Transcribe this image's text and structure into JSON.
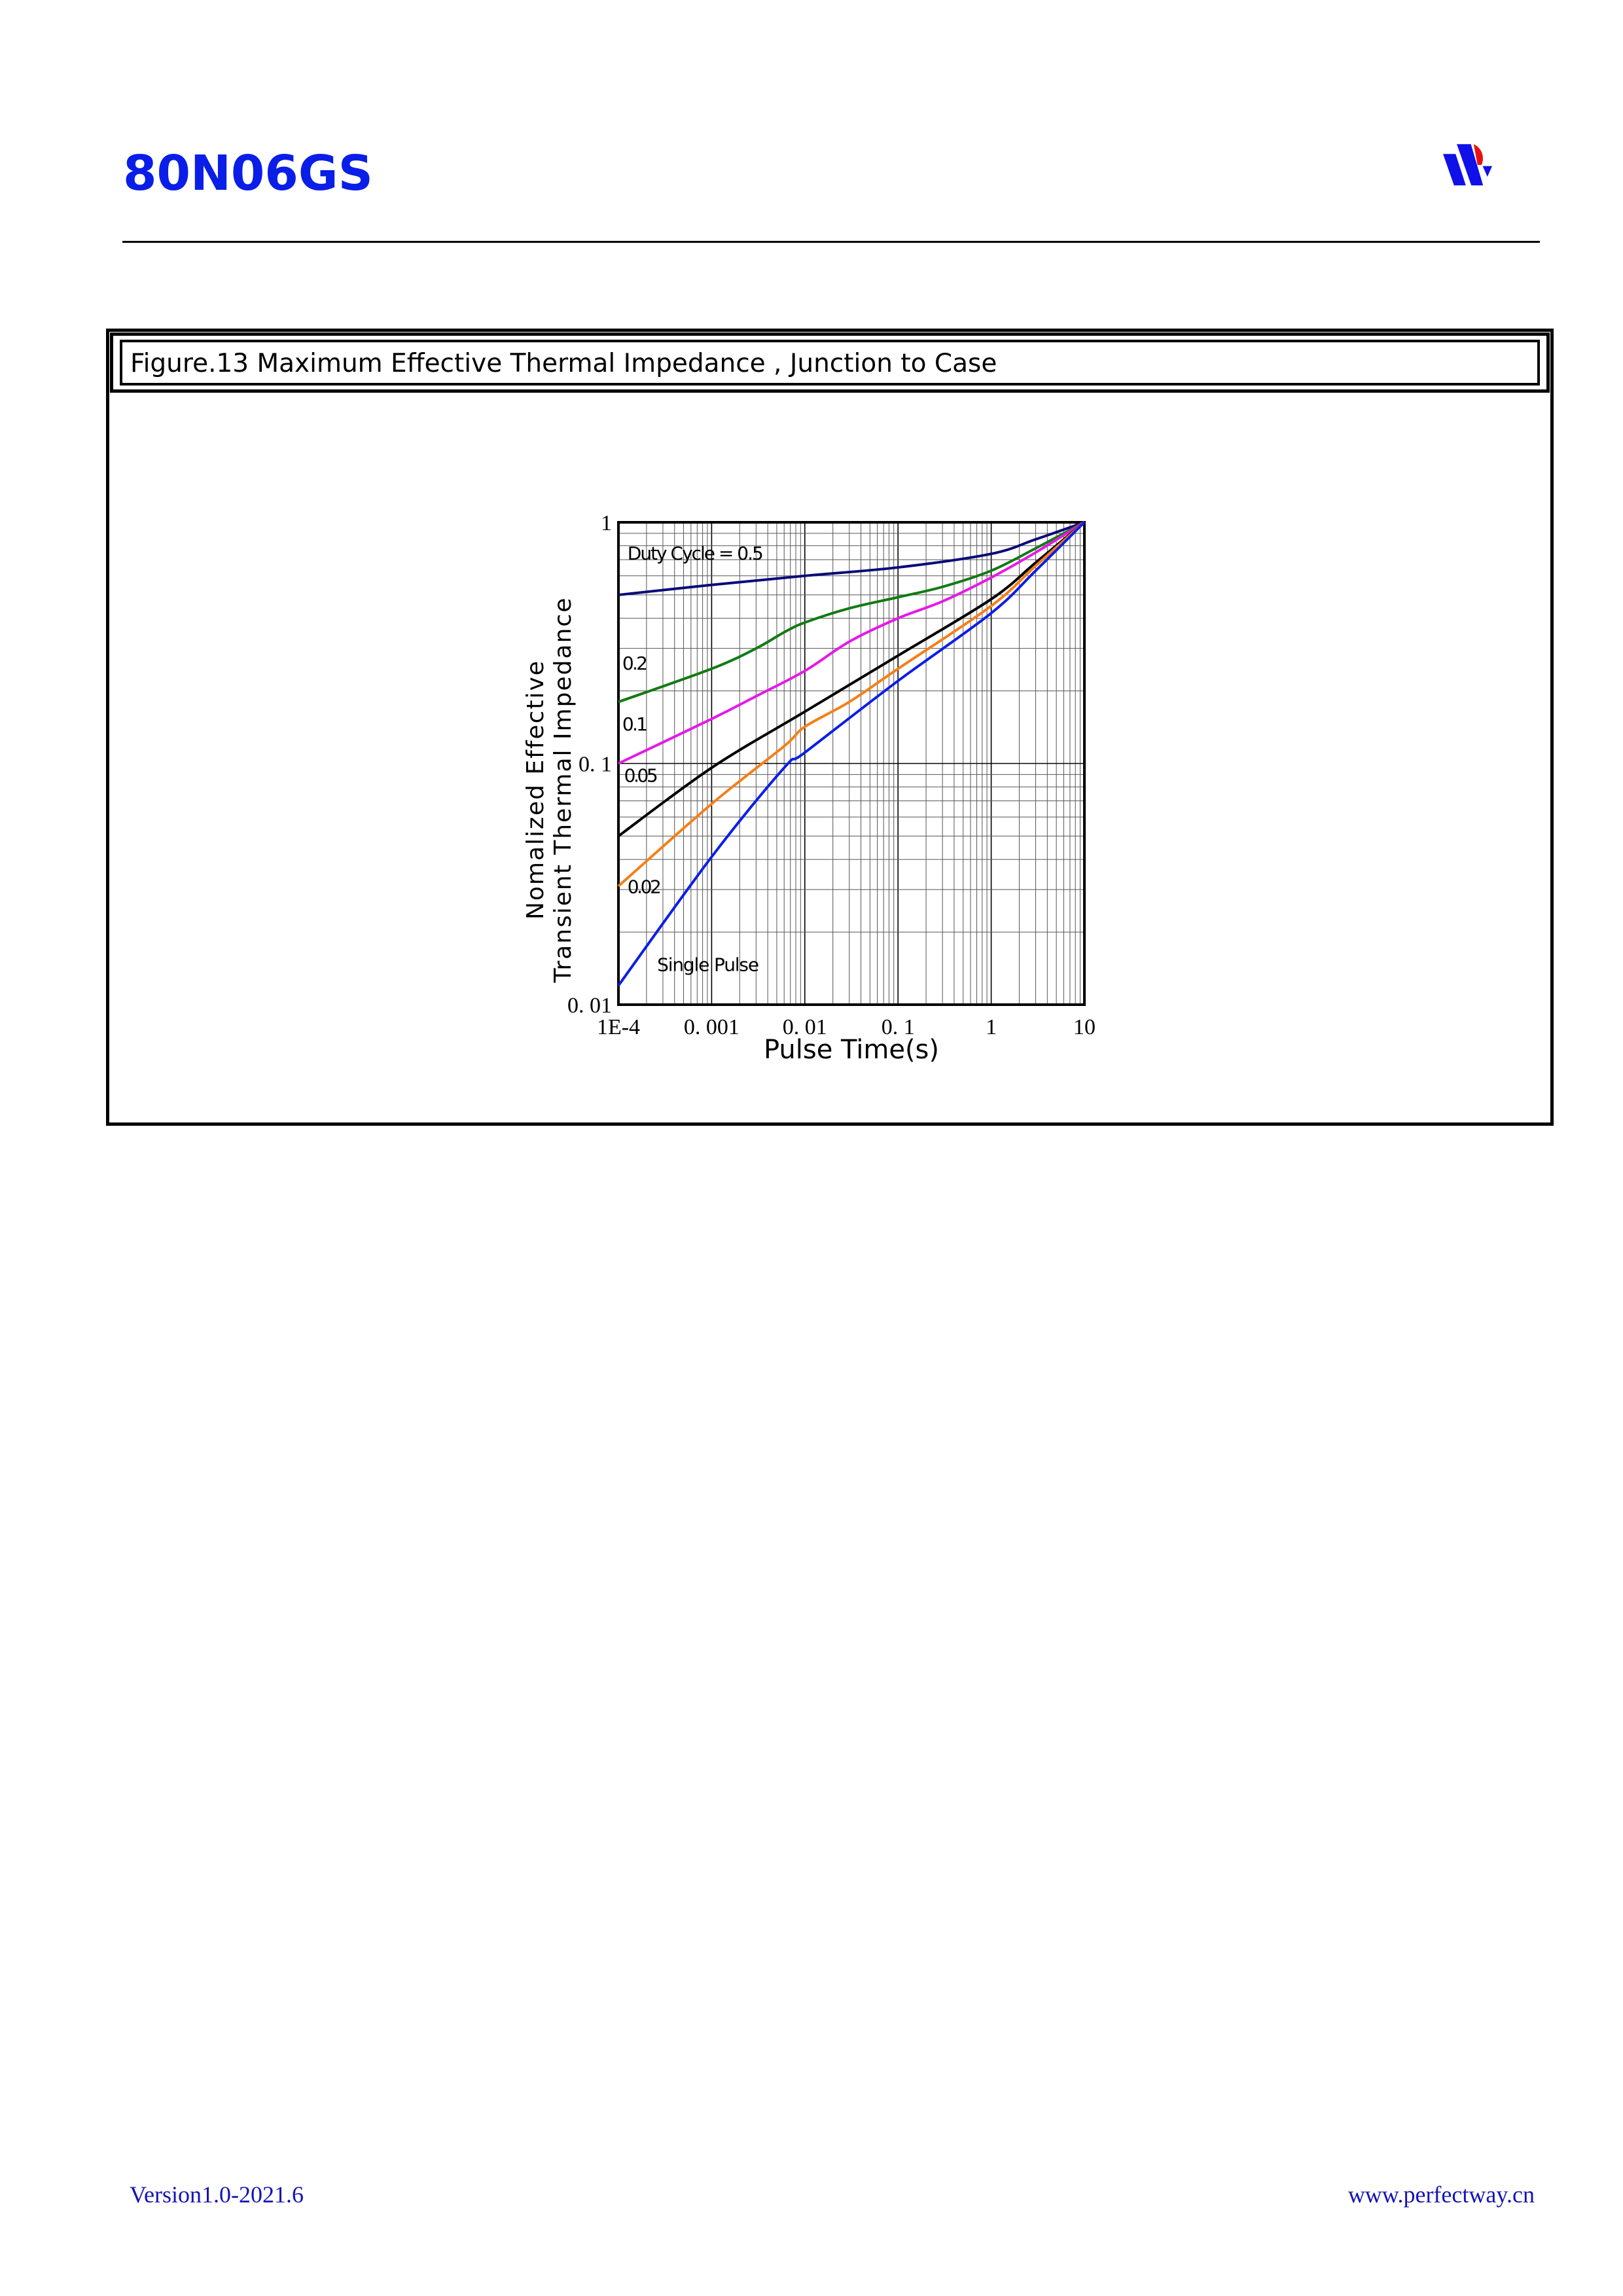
{
  "header": {
    "title": "80N06GS",
    "logo": "perfectway-logo"
  },
  "figure": {
    "caption": "Figure.13 Maximum Effective Thermal Impedance , Junction to Case"
  },
  "chart_data": {
    "type": "line",
    "xlabel": "Pulse Time(s)",
    "ylabel": [
      "Nomalized Effective",
      "Transient Thermal Impedance"
    ],
    "xscale": "log",
    "yscale": "log",
    "xlim": [
      0.0001,
      10
    ],
    "ylim": [
      0.01,
      1
    ],
    "xticks": [
      {
        "v": 0.0001,
        "label": "1E-4"
      },
      {
        "v": 0.001,
        "label": "0. 001"
      },
      {
        "v": 0.01,
        "label": "0. 01"
      },
      {
        "v": 0.1,
        "label": "0. 1"
      },
      {
        "v": 1,
        "label": "1"
      },
      {
        "v": 10,
        "label": "10"
      }
    ],
    "yticks": [
      {
        "v": 0.01,
        "label": "0. 01"
      },
      {
        "v": 0.1,
        "label": "0. 1"
      },
      {
        "v": 1,
        "label": "1"
      }
    ],
    "grid": true,
    "series": [
      {
        "name": "Duty Cycle = 0.5",
        "color": "#0a0a78",
        "x": [
          0.0001,
          0.001,
          0.01,
          0.1,
          1,
          3,
          10
        ],
        "y": [
          0.5,
          0.55,
          0.6,
          0.65,
          0.74,
          0.85,
          1.0
        ]
      },
      {
        "name": "0.2",
        "color": "#137a13",
        "x": [
          0.0001,
          0.001,
          0.003,
          0.006,
          0.01,
          0.03,
          0.1,
          0.3,
          1,
          3,
          10
        ],
        "y": [
          0.18,
          0.247,
          0.3,
          0.35,
          0.384,
          0.44,
          0.489,
          0.54,
          0.63,
          0.78,
          1.0
        ]
      },
      {
        "name": "0.1",
        "color": "#e619e6",
        "x": [
          0.0001,
          0.001,
          0.003,
          0.01,
          0.03,
          0.1,
          0.3,
          1,
          3,
          10
        ],
        "y": [
          0.1,
          0.153,
          0.19,
          0.242,
          0.32,
          0.4,
          0.47,
          0.59,
          0.75,
          1.0
        ]
      },
      {
        "name": "0.05",
        "color": "#000000",
        "x": [
          0.0001,
          0.001,
          0.01,
          0.1,
          1,
          3,
          10
        ],
        "y": [
          0.05,
          0.096,
          0.164,
          0.28,
          0.48,
          0.68,
          1.0
        ]
      },
      {
        "name": "0.02",
        "color": "#f57f17",
        "x": [
          0.0001,
          0.001,
          0.006,
          0.01,
          0.03,
          0.1,
          1,
          3,
          10
        ],
        "y": [
          0.031,
          0.068,
          0.118,
          0.142,
          0.18,
          0.247,
          0.45,
          0.66,
          1.0
        ]
      },
      {
        "name": "Single Pulse",
        "color": "#0c1ee6",
        "x": [
          0.0001,
          0.001,
          0.006,
          0.01,
          0.1,
          1,
          3,
          10
        ],
        "y": [
          0.012,
          0.041,
          0.096,
          0.111,
          0.22,
          0.42,
          0.63,
          1.0
        ]
      }
    ],
    "labels": [
      {
        "text": "Duty Cycle = 0.5",
        "x": 0.000125,
        "y": 0.7
      },
      {
        "text": "0.2",
        "x": 0.00011,
        "y": 0.245
      },
      {
        "text": "0.1",
        "x": 0.00011,
        "y": 0.137
      },
      {
        "text": "0.05",
        "x": 0.000115,
        "y": 0.084
      },
      {
        "text": "0.02",
        "x": 0.000125,
        "y": 0.029
      },
      {
        "text": "Single Pulse",
        "x": 0.00026,
        "y": 0.0138
      }
    ]
  },
  "footer": {
    "version": "Version1.0-2021.6",
    "website": "www.perfectway.cn"
  }
}
